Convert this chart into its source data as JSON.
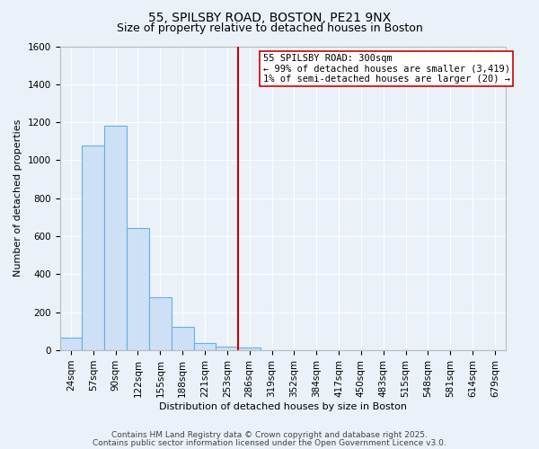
{
  "title": "55, SPILSBY ROAD, BOSTON, PE21 9NX",
  "subtitle": "Size of property relative to detached houses in Boston",
  "xlabel": "Distribution of detached houses by size in Boston",
  "ylabel": "Number of detached properties",
  "bar_values": [
    65,
    1080,
    1180,
    645,
    280,
    125,
    40,
    20,
    15,
    0,
    0,
    0,
    0,
    0,
    0,
    0,
    0,
    0,
    0,
    0
  ],
  "bin_labels": [
    "24sqm",
    "57sqm",
    "90sqm",
    "122sqm",
    "155sqm",
    "188sqm",
    "221sqm",
    "253sqm",
    "286sqm",
    "319sqm",
    "352sqm",
    "384sqm",
    "417sqm",
    "450sqm",
    "483sqm",
    "515sqm",
    "548sqm",
    "581sqm",
    "614sqm",
    "679sqm"
  ],
  "ylim": [
    0,
    1600
  ],
  "yticks": [
    0,
    200,
    400,
    600,
    800,
    1000,
    1200,
    1400,
    1600
  ],
  "bar_color": "#cde0f5",
  "bar_edge_color": "#6aaee0",
  "background_color": "#eaf1f9",
  "grid_color": "#ffffff",
  "vline_color": "#cc0000",
  "vline_position": 8,
  "annotation_text": "55 SPILSBY ROAD: 300sqm\n← 99% of detached houses are smaller (3,419)\n1% of semi-detached houses are larger (20) →",
  "annotation_box_facecolor": "#ffffff",
  "annotation_box_edgecolor": "#cc0000",
  "footer_line1": "Contains HM Land Registry data © Crown copyright and database right 2025.",
  "footer_line2": "Contains public sector information licensed under the Open Government Licence v3.0.",
  "title_fontsize": 10,
  "subtitle_fontsize": 9,
  "axis_label_fontsize": 8,
  "tick_fontsize": 7.5,
  "annotation_fontsize": 7.5,
  "footer_fontsize": 6.5
}
